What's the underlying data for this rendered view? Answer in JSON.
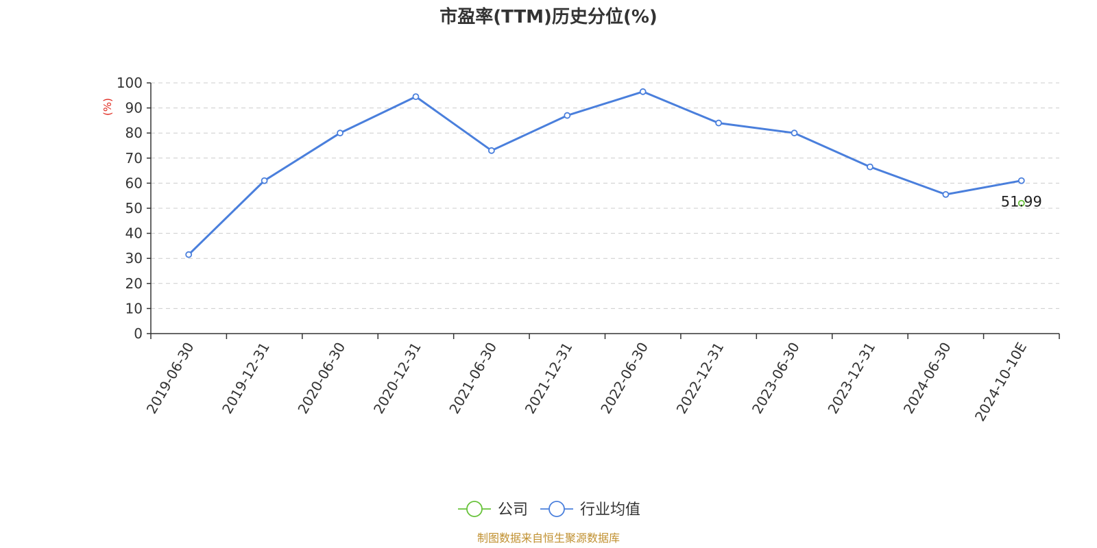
{
  "chart_data": {
    "type": "line",
    "title": "市盈率(TTM)历史分位(%)",
    "ylabel": "(%)",
    "ylim": [
      0,
      100
    ],
    "yticks": [
      0,
      10,
      20,
      30,
      40,
      50,
      60,
      70,
      80,
      90,
      100
    ],
    "grid": true,
    "categories": [
      "2019-06-30",
      "2019-12-31",
      "2020-06-30",
      "2020-12-31",
      "2021-06-30",
      "2021-12-31",
      "2022-06-30",
      "2022-12-31",
      "2023-06-30",
      "2023-12-31",
      "2024-06-30",
      "2024-10-10E"
    ],
    "series": [
      {
        "name": "公司",
        "color": "#67c23a",
        "values": [
          null,
          null,
          null,
          null,
          null,
          null,
          null,
          null,
          null,
          null,
          null,
          51.99
        ],
        "labels": [
          "",
          "",
          "",
          "",
          "",
          "",
          "",
          "",
          "",
          "",
          "",
          "51.99"
        ]
      },
      {
        "name": "行业均值",
        "color": "#4a7fdc",
        "values": [
          31.5,
          61,
          80,
          94.5,
          73,
          87,
          96.5,
          84,
          80,
          66.5,
          55.5,
          61
        ]
      }
    ],
    "legend_position": "bottom-center",
    "source": "制图数据来自恒生聚源数据库",
    "source_color": "#c09030",
    "ylabel_color": "#e0281e"
  }
}
